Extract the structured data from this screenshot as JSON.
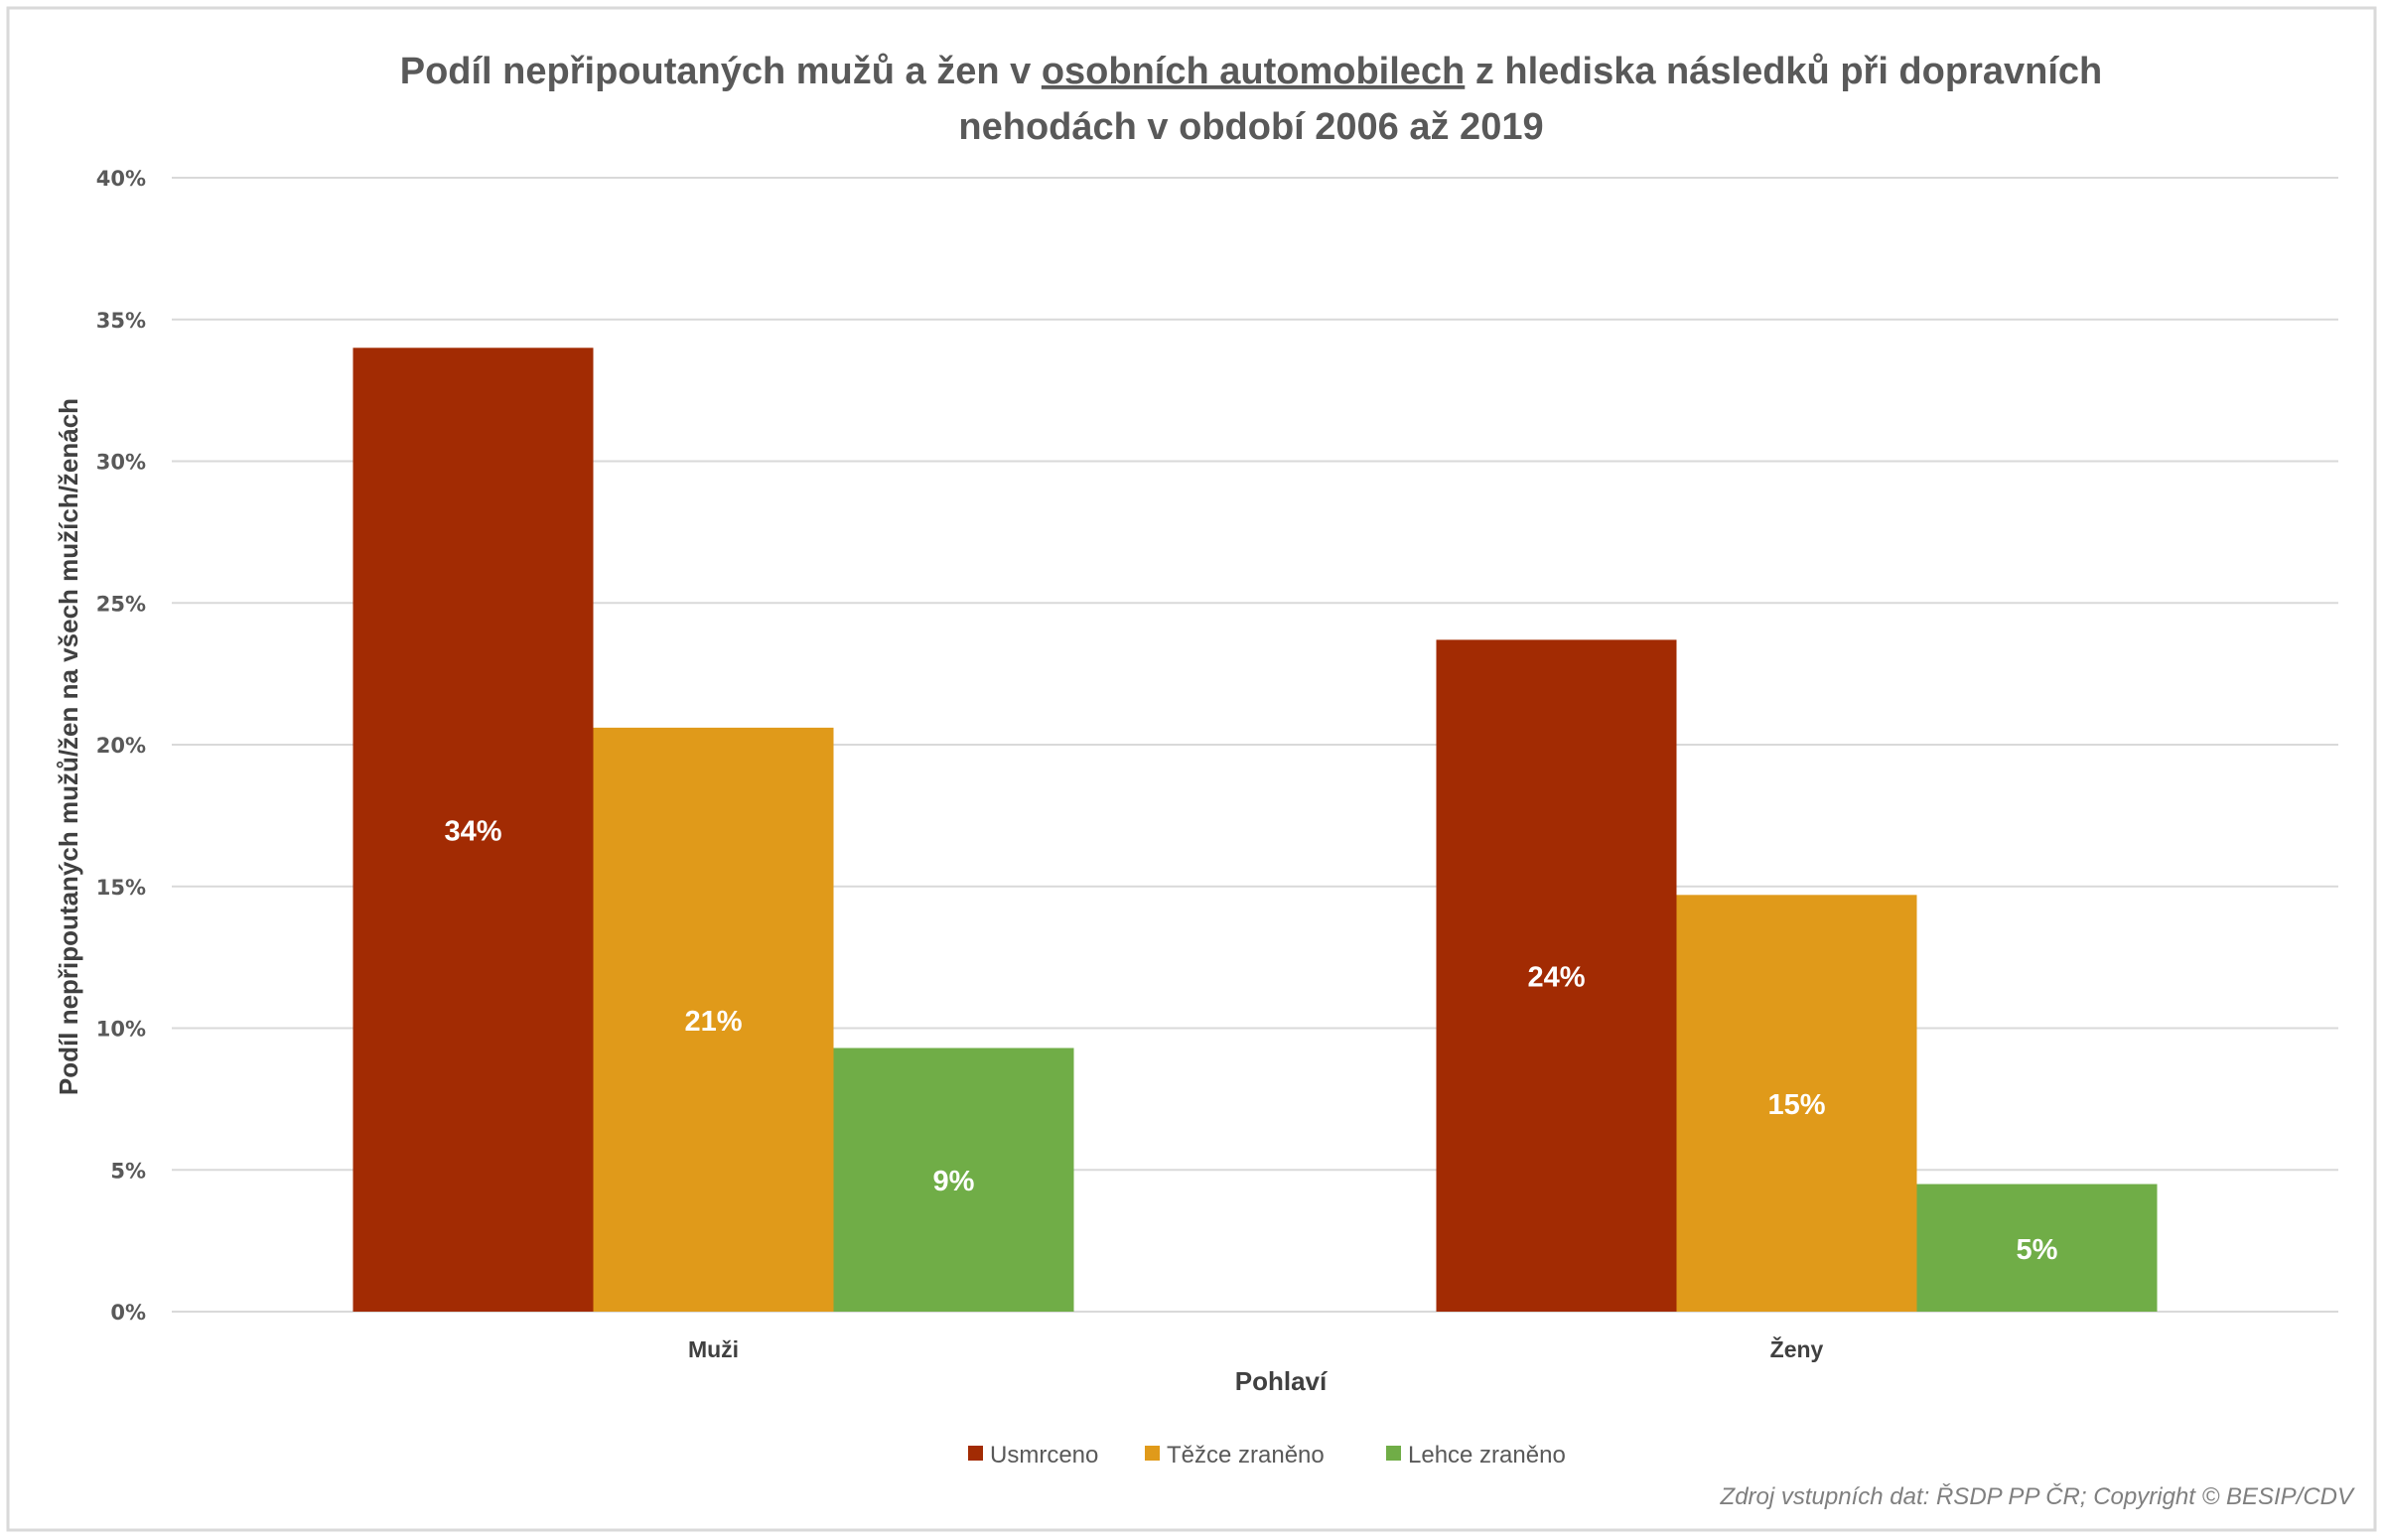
{
  "chart_data": {
    "type": "bar",
    "title_parts": [
      "Podíl nepřipoutaných mužů a žen v ",
      "osobních automobilech",
      " z hlediska následků při dopravních",
      "nehodách v období 2006 až 2019"
    ],
    "xlabel": "Pohlaví",
    "ylabel": "Podíl nepřipoutaných mužů/žen na všech mužích/ženách",
    "categories": [
      "Muži",
      "Ženy"
    ],
    "ylim": [
      0,
      40
    ],
    "yticks": [
      "0%",
      "5%",
      "10%",
      "15%",
      "20%",
      "25%",
      "30%",
      "35%",
      "40%"
    ],
    "grid": true,
    "legend_position": "bottom",
    "series": [
      {
        "name": "Usmrceno",
        "color": "#A22B03",
        "values": [
          34.0,
          23.7
        ],
        "labels": [
          "34%",
          "24%"
        ]
      },
      {
        "name": "Těžce zraněno",
        "color": "#E09A1A",
        "values": [
          20.6,
          14.7
        ],
        "labels": [
          "21%",
          "15%"
        ]
      },
      {
        "name": "Lehce zraněno",
        "color": "#70AD47",
        "values": [
          9.3,
          4.5
        ],
        "labels": [
          "9%",
          "5%"
        ]
      }
    ],
    "source": "Zdroj vstupních dat: ŘSDP PP ČR; Copyright © BESIP/CDV"
  }
}
